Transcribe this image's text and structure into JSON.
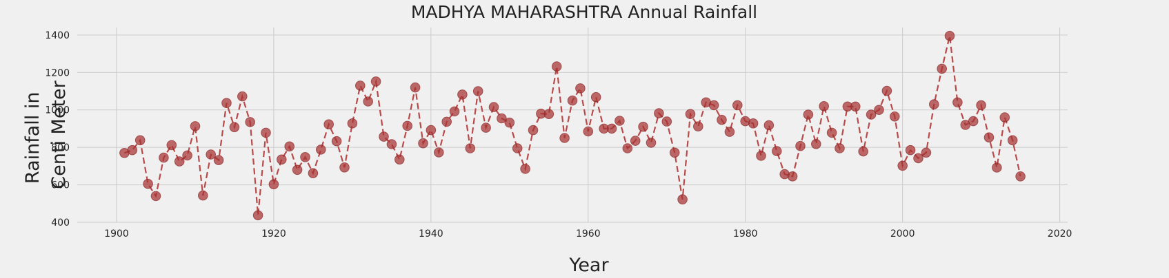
{
  "chart_data": {
    "type": "line",
    "title": "MADHYA MAHARASHTRA Annual Rainfall",
    "xlabel": "Year",
    "ylabel_lines": [
      "Rainfall in",
      "Centi Meter"
    ],
    "xlim": [
      1895,
      2021
    ],
    "ylim": [
      400,
      1440
    ],
    "xticks": [
      1900,
      1920,
      1940,
      1960,
      1980,
      2000,
      2020
    ],
    "yticks": [
      400,
      600,
      800,
      1000,
      1200,
      1400
    ],
    "grid": true,
    "series_color": "#b94a4a",
    "marker_color": "#a83232",
    "x": [
      1901,
      1902,
      1903,
      1904,
      1905,
      1906,
      1907,
      1908,
      1909,
      1910,
      1911,
      1912,
      1913,
      1914,
      1915,
      1916,
      1917,
      1918,
      1919,
      1920,
      1921,
      1922,
      1923,
      1924,
      1925,
      1926,
      1927,
      1928,
      1929,
      1930,
      1931,
      1932,
      1933,
      1934,
      1935,
      1936,
      1937,
      1938,
      1939,
      1940,
      1941,
      1942,
      1943,
      1944,
      1945,
      1946,
      1947,
      1948,
      1949,
      1950,
      1951,
      1952,
      1953,
      1954,
      1955,
      1956,
      1957,
      1958,
      1959,
      1960,
      1961,
      1962,
      1963,
      1964,
      1965,
      1966,
      1967,
      1968,
      1969,
      1970,
      1971,
      1972,
      1973,
      1974,
      1975,
      1976,
      1977,
      1978,
      1979,
      1980,
      1981,
      1982,
      1983,
      1984,
      1985,
      1986,
      1987,
      1988,
      1989,
      1990,
      1991,
      1992,
      1993,
      1994,
      1995,
      1996,
      1997,
      1998,
      1999,
      2000,
      2001,
      2002,
      2003,
      2004,
      2005,
      2006,
      2007,
      2008,
      2009,
      2010,
      2011,
      2012,
      2013,
      2014,
      2015
    ],
    "y": [
      770,
      785,
      838,
      605,
      540,
      745,
      812,
      725,
      757,
      913,
      543,
      762,
      732,
      1037,
      908,
      1072,
      935,
      437,
      878,
      603,
      735,
      805,
      680,
      748,
      662,
      788,
      923,
      833,
      693,
      928,
      1130,
      1045,
      1152,
      857,
      817,
      735,
      915,
      1120,
      822,
      892,
      773,
      937,
      992,
      1082,
      795,
      1100,
      905,
      1015,
      955,
      932,
      795,
      685,
      892,
      980,
      978,
      1232,
      850,
      1050,
      1115,
      885,
      1068,
      900,
      900,
      942,
      795,
      835,
      910,
      825,
      982,
      938,
      772,
      522,
      978,
      912,
      1040,
      1025,
      947,
      883,
      1025,
      940,
      928,
      755,
      918,
      780,
      657,
      645,
      807,
      975,
      818,
      1020,
      878,
      795,
      1018,
      1018,
      778,
      975,
      1000,
      1102,
      965,
      702,
      785,
      742,
      772,
      1030,
      1220,
      1395,
      1040,
      920,
      940,
      1025,
      853,
      692,
      960,
      838,
      645
    ]
  }
}
